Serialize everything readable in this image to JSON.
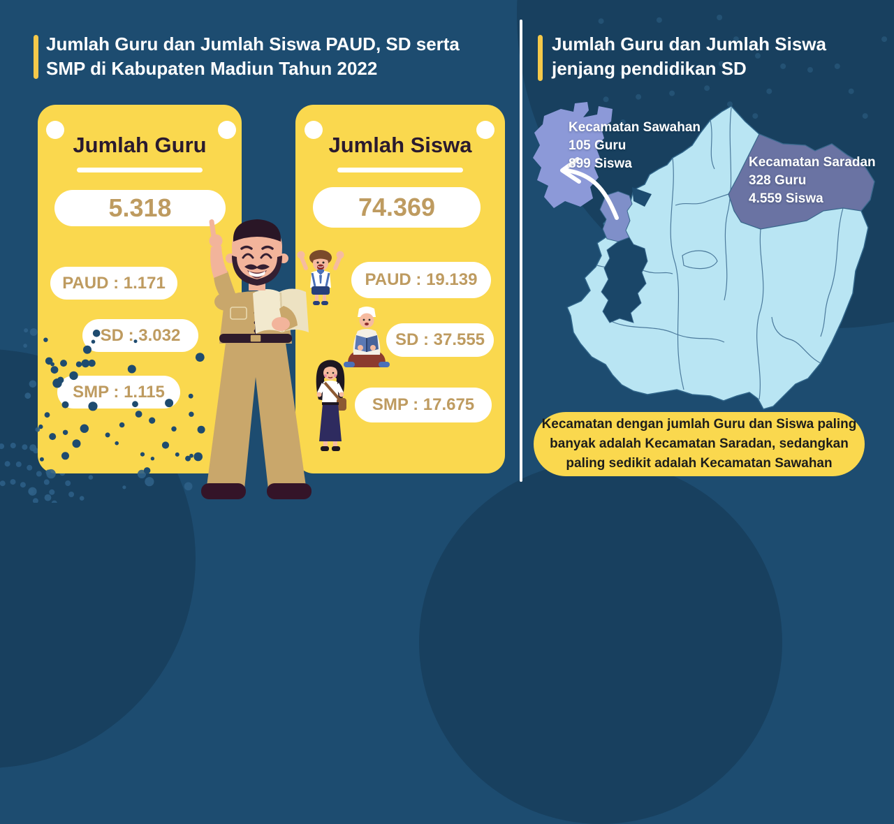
{
  "colors": {
    "background": "#1D4C70",
    "accent_yellow": "#F5C94A",
    "card_yellow": "#FAD84E",
    "number_tan": "#BE9B60",
    "card_title_dark": "#2A1A2F",
    "map_light_blue": "#B9E5F3",
    "map_sawahan_periwinkle": "#8C99D8",
    "map_saradan_slate": "#6A73A3",
    "map_dark_district": "#1A4668"
  },
  "left_section": {
    "title_line1": "Jumlah Guru dan Jumlah Siswa PAUD, SD serta",
    "title_line2": "SMP di Kabupaten Madiun Tahun 2022",
    "guru_card": {
      "title": "Jumlah Guru",
      "total": "5.318",
      "paud": "PAUD : 1.171",
      "sd": "SD : 3.032",
      "smp": "SMP : 1.115"
    },
    "siswa_card": {
      "title": "Jumlah Siswa",
      "total": "74.369",
      "paud": "PAUD : 19.139",
      "sd": "SD : 37.555",
      "smp": "SMP : 17.675"
    }
  },
  "right_section": {
    "title_line1": "Jumlah Guru dan Jumlah Siswa",
    "title_line2": "jenjang pendidikan SD",
    "sawahan": {
      "name": "Kecamatan Sawahan",
      "guru": "105 Guru",
      "siswa": "899 Siswa"
    },
    "saradan": {
      "name": "Kecamatan Saradan",
      "guru": "328 Guru",
      "siswa": "4.559 Siswa"
    },
    "note_line1": "Kecamatan dengan jumlah Guru dan Siswa paling",
    "note_line2": "banyak adalah Kecamatan Saradan, sedangkan",
    "note_line3": "paling sedikit adalah Kecamatan Sawahan"
  },
  "chart_data": [
    {
      "type": "table",
      "title": "Jumlah Guru",
      "categories": [
        "PAUD",
        "SD",
        "SMP"
      ],
      "values": [
        1171,
        3032,
        1115
      ],
      "total": 5318
    },
    {
      "type": "table",
      "title": "Jumlah Siswa",
      "categories": [
        "PAUD",
        "SD",
        "SMP"
      ],
      "values": [
        19139,
        37555,
        17675
      ],
      "total": 74369
    },
    {
      "type": "table",
      "title": "Jumlah Guru dan Jumlah Siswa jenjang pendidikan SD",
      "categories": [
        "Kecamatan Sawahan",
        "Kecamatan Saradan"
      ],
      "series": [
        {
          "name": "Guru",
          "values": [
            105,
            328
          ]
        },
        {
          "name": "Siswa",
          "values": [
            899,
            4559
          ]
        }
      ]
    }
  ]
}
